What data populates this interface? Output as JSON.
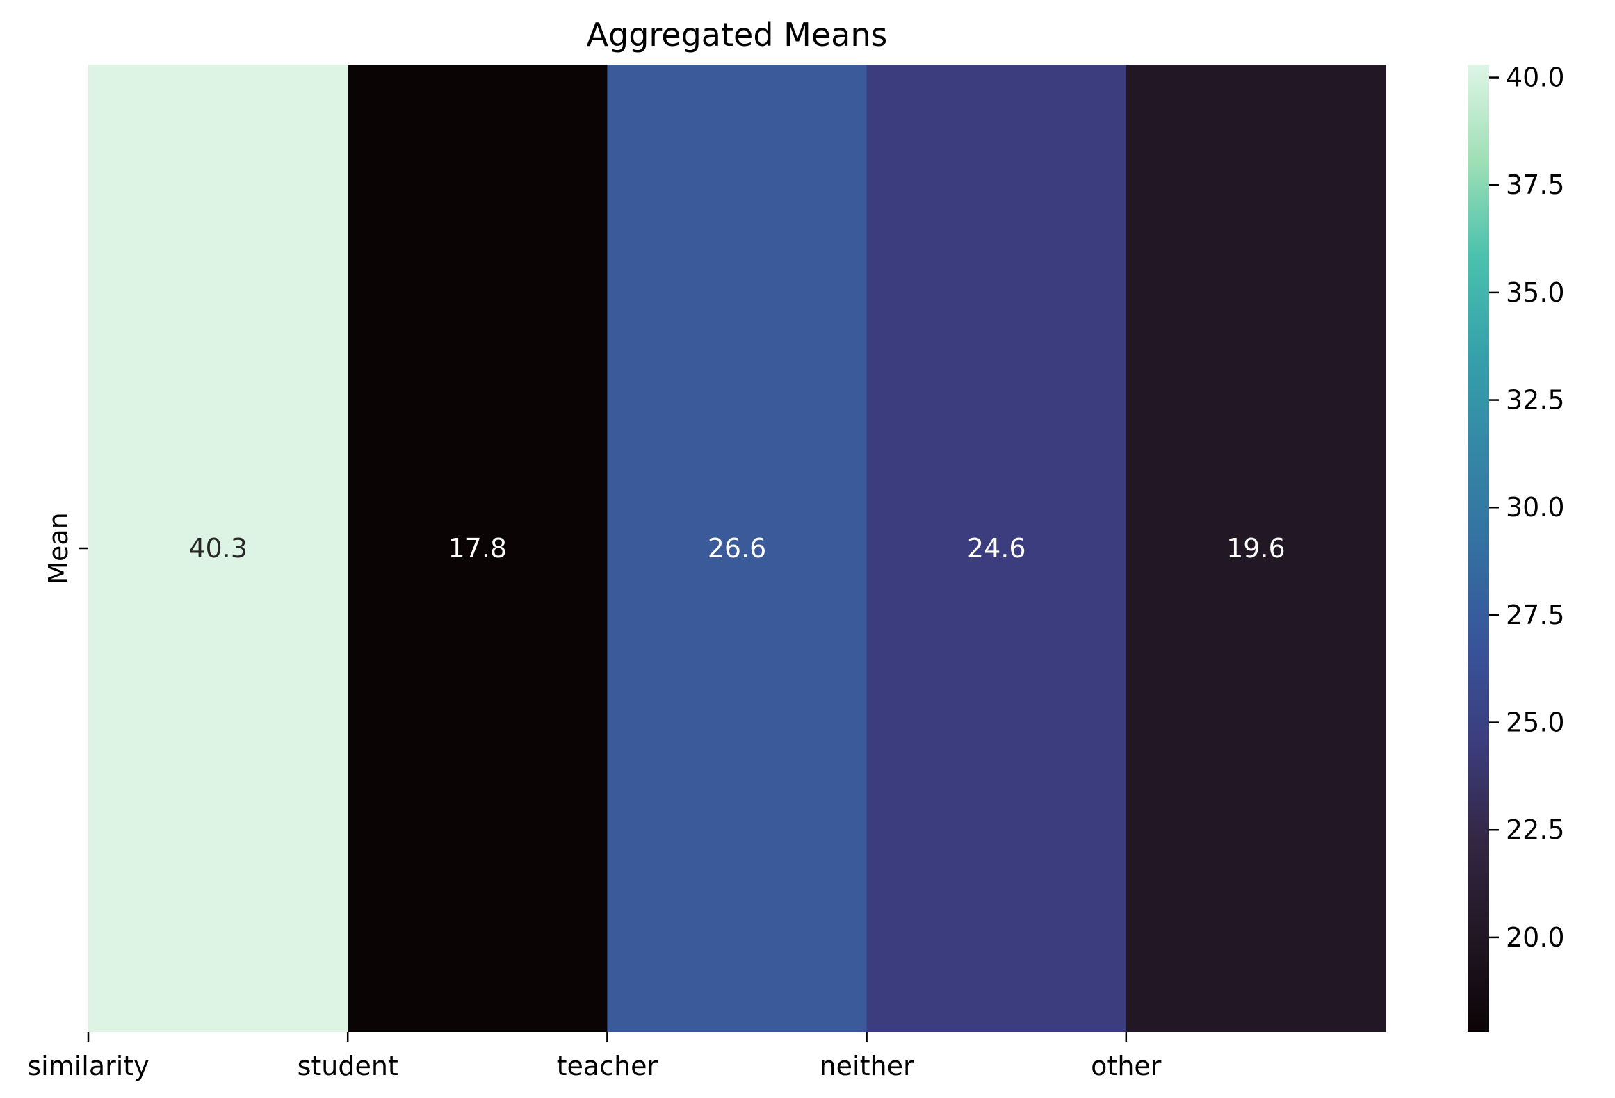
{
  "chart_data": {
    "type": "heatmap",
    "title": "Aggregated Means",
    "rows": [
      "Mean"
    ],
    "columns": [
      "similarity",
      "student",
      "teacher",
      "neither",
      "other"
    ],
    "values": [
      [
        40.3,
        17.8,
        26.6,
        24.6,
        19.6
      ]
    ],
    "value_labels": [
      "40.3",
      "17.8",
      "26.6",
      "24.6",
      "19.6"
    ],
    "colormap": "mako",
    "colorbar": {
      "range": [
        17.8,
        40.3
      ],
      "ticks": [
        20.0,
        22.5,
        25.0,
        27.5,
        30.0,
        32.5,
        35.0,
        37.5,
        40.0
      ],
      "tick_labels": [
        "20.0",
        "22.5",
        "25.0",
        "27.5",
        "30.0",
        "32.5",
        "35.0",
        "37.5",
        "40.0"
      ]
    },
    "cell_colors": [
      "#ddf4e5",
      "#0b0405",
      "#3a5a99",
      "#3b3d7e",
      "#211725"
    ],
    "cell_text_colors": [
      "#262626",
      "#ffffff",
      "#ffffff",
      "#ffffff",
      "#ffffff"
    ],
    "grid": false,
    "legend": "colorbar-right"
  }
}
